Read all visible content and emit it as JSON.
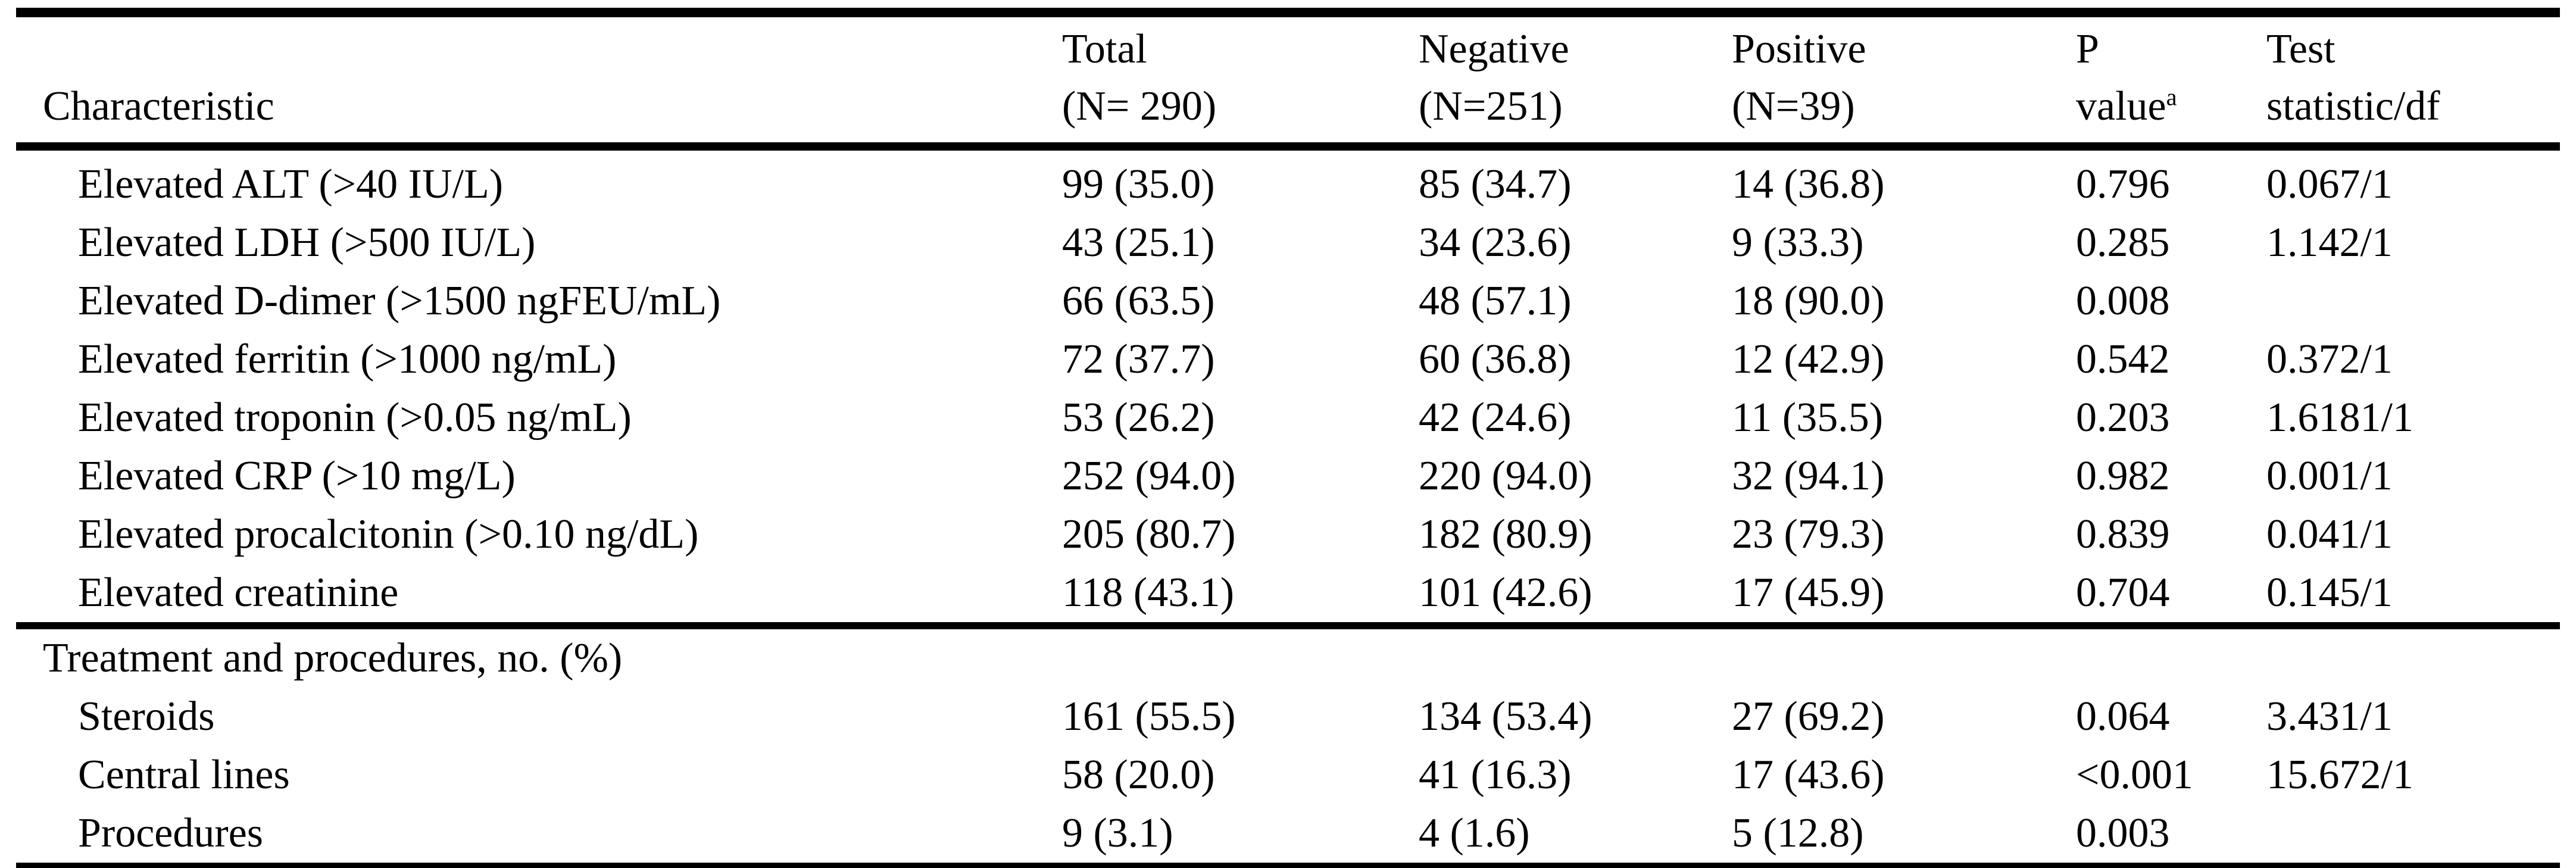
{
  "colors": {
    "text": "#000000",
    "background": "#ffffff",
    "rule": "#000000"
  },
  "header": {
    "characteristic": "Characteristic",
    "cols": [
      {
        "line1": "Total",
        "line2": "(N= 290)"
      },
      {
        "line1": "Negative",
        "line2": "(N=251)"
      },
      {
        "line1": "Positive",
        "line2": "(N=39)"
      },
      {
        "line1": "P",
        "line2": "value",
        "sup": "a"
      },
      {
        "line1": "Test",
        "line2": "statistic/df"
      }
    ]
  },
  "table": {
    "rows": [
      {
        "label": "Elevated ALT (>40 IU/L)",
        "indent": true,
        "section": false,
        "total": "99 (35.0)",
        "negative": "85 (34.7)",
        "positive": "14 (36.8)",
        "p_value": "0.796",
        "test_statistic": "0.067/1"
      },
      {
        "label": "Elevated LDH (>500 IU/L)",
        "indent": true,
        "section": false,
        "total": "43 (25.1)",
        "negative": "34 (23.6)",
        "positive": "9 (33.3)",
        "p_value": "0.285",
        "test_statistic": "1.142/1"
      },
      {
        "label": "Elevated D-dimer (>1500 ngFEU/mL)",
        "indent": true,
        "section": false,
        "total": "66 (63.5)",
        "negative": "48 (57.1)",
        "positive": "18 (90.0)",
        "p_value": "0.008",
        "test_statistic": ""
      },
      {
        "label": "Elevated ferritin (>1000 ng/mL)",
        "indent": true,
        "section": false,
        "total": "72 (37.7)",
        "negative": "60 (36.8)",
        "positive": "12 (42.9)",
        "p_value": "0.542",
        "test_statistic": "0.372/1"
      },
      {
        "label": "Elevated troponin (>0.05 ng/mL)",
        "indent": true,
        "section": false,
        "total": "53 (26.2)",
        "negative": "42 (24.6)",
        "positive": "11 (35.5)",
        "p_value": "0.203",
        "test_statistic": "1.6181/1"
      },
      {
        "label": "Elevated CRP (>10 mg/L)",
        "indent": true,
        "section": false,
        "total": "252 (94.0)",
        "negative": "220 (94.0)",
        "positive": "32 (94.1)",
        "p_value": "0.982",
        "test_statistic": "0.001/1"
      },
      {
        "label": "Elevated procalcitonin (>0.10 ng/dL)",
        "indent": true,
        "section": false,
        "total": "205 (80.7)",
        "negative": "182 (80.9)",
        "positive": "23 (79.3)",
        "p_value": "0.839",
        "test_statistic": "0.041/1"
      },
      {
        "label": "Elevated creatinine",
        "indent": true,
        "section": false,
        "total": "118 (43.1)",
        "negative": "101 (42.6)",
        "positive": "17 (45.9)",
        "p_value": "0.704",
        "test_statistic": "0.145/1"
      },
      {
        "label": "Treatment and procedures, no. (%)",
        "indent": false,
        "section": true,
        "total": "",
        "negative": "",
        "positive": "",
        "p_value": "",
        "test_statistic": ""
      },
      {
        "label": "Steroids",
        "indent": true,
        "section": false,
        "total": "161 (55.5)",
        "negative": "134 (53.4)",
        "positive": "27 (69.2)",
        "p_value": "0.064",
        "test_statistic": "3.431/1"
      },
      {
        "label": "Central lines",
        "indent": true,
        "section": false,
        "total": "58 (20.0)",
        "negative": "41 (16.3)",
        "positive": "17 (43.6)",
        "p_value": "<0.001",
        "test_statistic": "15.672/1"
      },
      {
        "label": "Procedures",
        "indent": true,
        "section": false,
        "total": "9 (3.1)",
        "negative": "4 (1.6)",
        "positive": "5 (12.8)",
        "p_value": "0.003",
        "test_statistic": ""
      }
    ]
  }
}
